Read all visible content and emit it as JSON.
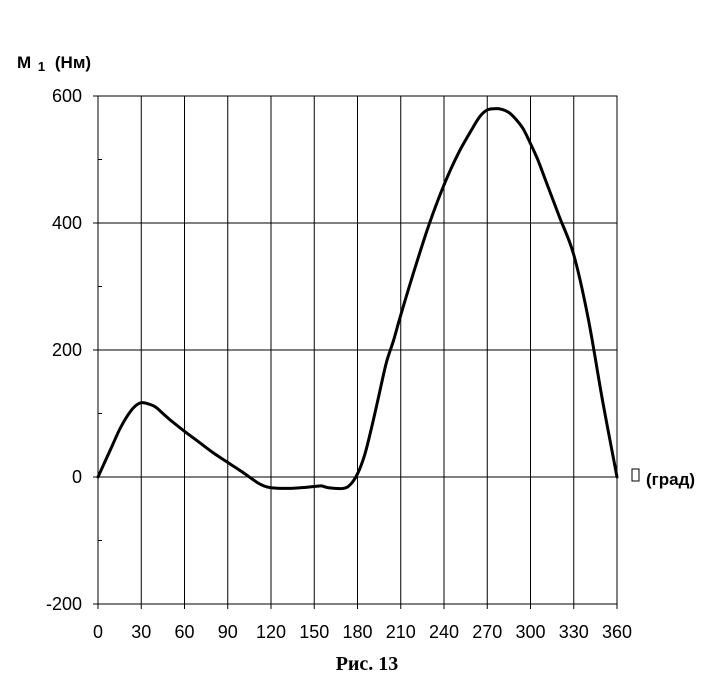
{
  "chart_data": {
    "type": "line",
    "ylabel_main": "M",
    "ylabel_sub": "1",
    "ylabel_unit": "(Нм)",
    "xlabel_symbol": "",
    "xlabel_unit": "(град)",
    "caption": "Рис. 13",
    "xlim": [
      0,
      360
    ],
    "ylim": [
      -200,
      600
    ],
    "x_ticks": [
      0,
      30,
      60,
      90,
      120,
      150,
      180,
      210,
      240,
      270,
      300,
      330,
      360
    ],
    "y_ticks": [
      -200,
      0,
      200,
      400,
      600
    ],
    "y_minor_ticks": [
      -100,
      100,
      300,
      500
    ],
    "grid": true,
    "series": [
      {
        "x": [
          0,
          5,
          10,
          15,
          20,
          25,
          30,
          35,
          40,
          45,
          50,
          60,
          70,
          80,
          90,
          100,
          110,
          115,
          120,
          130,
          140,
          150,
          155,
          160,
          170,
          175,
          180,
          185,
          190,
          195,
          200,
          205,
          210,
          220,
          230,
          240,
          250,
          260,
          265,
          270,
          275,
          280,
          285,
          290,
          295,
          300,
          305,
          310,
          320,
          330,
          340,
          350,
          360
        ],
        "y": [
          0,
          25,
          50,
          75,
          95,
          110,
          117,
          115,
          110,
          100,
          90,
          72,
          55,
          38,
          23,
          8,
          -8,
          -14,
          -17,
          -18,
          -17,
          -15,
          -14,
          -17,
          -18,
          -12,
          5,
          35,
          80,
          130,
          180,
          215,
          255,
          330,
          400,
          460,
          510,
          550,
          568,
          578,
          580,
          579,
          574,
          563,
          548,
          525,
          500,
          470,
          410,
          350,
          250,
          120,
          0
        ]
      }
    ]
  }
}
